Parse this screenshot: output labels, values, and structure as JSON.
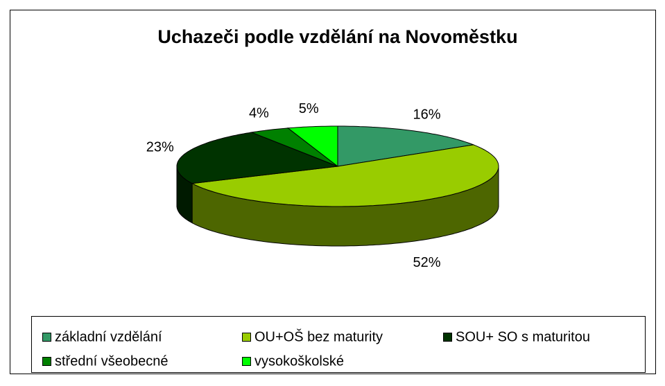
{
  "chart_data": {
    "type": "pie3d",
    "title": "Uchazeči podle vzdělání na Novoměstku",
    "categories": [
      "základní vzdělání",
      "OU+OŠ bez maturity",
      "SOU+ SO s maturitou",
      "střední všeobecné",
      "vysokoškolské"
    ],
    "values": [
      16,
      52,
      23,
      4,
      5
    ],
    "value_labels": [
      "16%",
      "52%",
      "23%",
      "4%",
      "5%"
    ],
    "colors": [
      "#339966",
      "#99cc00",
      "#003300",
      "#008000",
      "#00ff00"
    ],
    "legend": "bottom"
  }
}
